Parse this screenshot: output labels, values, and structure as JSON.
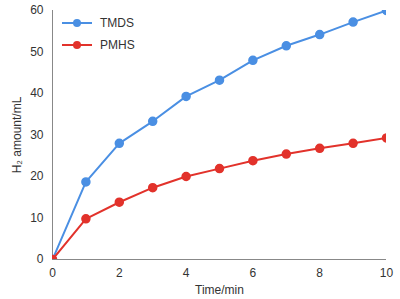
{
  "chart_data": {
    "type": "line",
    "x": [
      0,
      1,
      2,
      3,
      4,
      5,
      6,
      7,
      8,
      9,
      10
    ],
    "series": [
      {
        "name": "TMDS",
        "color": "#4a8fe3",
        "marker": "circle",
        "values": [
          0,
          18.7,
          28,
          33.3,
          39.3,
          43.2,
          48,
          51.5,
          54.2,
          57.2,
          60
        ]
      },
      {
        "name": "PMHS",
        "color": "#e2322b",
        "marker": "circle",
        "values": [
          0,
          9.8,
          13.8,
          17.3,
          20,
          21.9,
          23.8,
          25.4,
          26.8,
          28,
          29.3
        ]
      }
    ],
    "x_label": "Time/min",
    "y_label": "H₂ amount/mL",
    "xlim": [
      0,
      10
    ],
    "xticks": [
      0,
      2,
      4,
      6,
      8,
      10
    ],
    "ylim": [
      0,
      60
    ],
    "yticks": [
      0,
      10,
      20,
      30,
      40,
      50,
      60
    ],
    "grid": false,
    "legend": "top-left"
  }
}
